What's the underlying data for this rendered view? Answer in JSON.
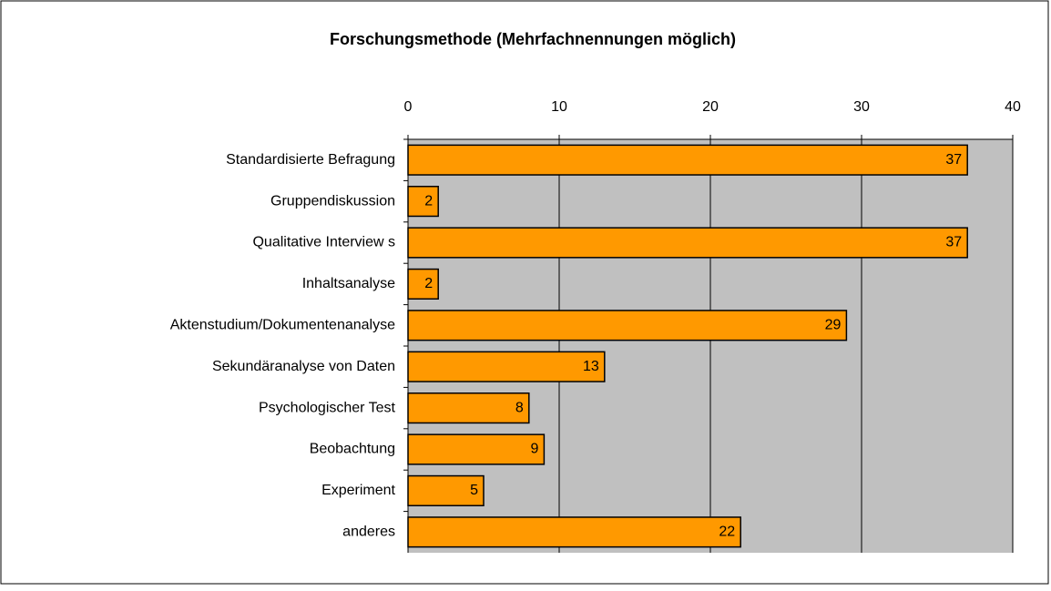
{
  "chart_data": {
    "type": "bar",
    "orientation": "horizontal",
    "title": "Forschungsmethode (Mehrfachnennungen möglich)",
    "categories": [
      "Standardisierte Befragung",
      "Gruppendiskussion",
      "Qualitative Interview s",
      "Inhaltsanalyse",
      "Aktenstudium/Dokumentenanalyse",
      "Sekundäranalyse von Daten",
      "Psychologischer Test",
      "Beobachtung",
      "Experiment",
      "anderes"
    ],
    "values": [
      37,
      2,
      37,
      2,
      29,
      13,
      8,
      9,
      5,
      22
    ],
    "color": "#ff9900",
    "plot_background": "#c0c0c0",
    "xlim": [
      0,
      40
    ],
    "xticks": [
      0,
      10,
      20,
      30,
      40
    ],
    "grid": true
  }
}
